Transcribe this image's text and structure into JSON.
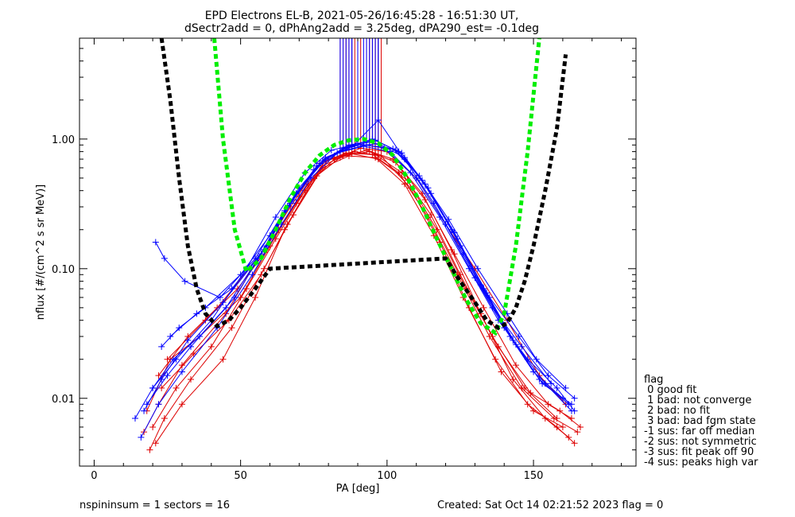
{
  "chart_data": {
    "type": "line",
    "title": "EPD Electrons EL-B, 2021-05-26/16:45:28 - 16:51:30 UT,",
    "subtitle": "dSectr2add = 0, dPhAng2add = 3.25deg, dPA290_est=  -0.1deg",
    "xlabel": "PA [deg]",
    "ylabel": "nflux [#/(cm^2 s sr MeV)]",
    "xlim": [
      -5,
      185
    ],
    "ylim": [
      0.003,
      6.0
    ],
    "yscale": "log",
    "xticks": [
      "0",
      "50",
      "100",
      "150"
    ],
    "xtick_values": [
      0,
      50,
      100,
      150
    ],
    "yticks": [
      "0.01",
      "0.10",
      "1.00"
    ],
    "ytick_values": [
      0.01,
      0.1,
      1.0
    ],
    "grid": false,
    "colors": {
      "series_red": "#dd0000",
      "series_blue": "#0000ff",
      "fit_green": "#00ee00",
      "fit_black": "#000000"
    },
    "series": [
      {
        "color": "red",
        "marker": "+",
        "x": [
          17,
          22,
          30,
          45,
          56,
          67,
          77,
          86,
          95,
          104,
          114,
          124,
          135,
          146,
          157,
          165
        ],
        "y": [
          0.0055,
          0.009,
          0.018,
          0.045,
          0.12,
          0.3,
          0.65,
          0.78,
          0.76,
          0.55,
          0.25,
          0.09,
          0.03,
          0.012,
          0.007,
          0.0055
        ]
      },
      {
        "color": "red",
        "marker": "+",
        "x": [
          19,
          24,
          33,
          47,
          58,
          68,
          78,
          87,
          96,
          106,
          116,
          126,
          137,
          148,
          158,
          164
        ],
        "y": [
          0.004,
          0.007,
          0.014,
          0.035,
          0.1,
          0.26,
          0.6,
          0.74,
          0.72,
          0.45,
          0.18,
          0.06,
          0.02,
          0.009,
          0.006,
          0.0045
        ]
      },
      {
        "color": "red",
        "marker": "+",
        "x": [
          20,
          28,
          40,
          52,
          62,
          72,
          80,
          89,
          98,
          108,
          118,
          128,
          139,
          150,
          160
        ],
        "y": [
          0.006,
          0.012,
          0.025,
          0.07,
          0.17,
          0.4,
          0.7,
          0.8,
          0.74,
          0.42,
          0.16,
          0.05,
          0.016,
          0.008,
          0.006
        ]
      },
      {
        "color": "red",
        "marker": "+",
        "x": [
          18,
          26,
          36,
          50,
          60,
          70,
          79,
          88,
          97,
          107,
          117,
          127,
          138,
          149,
          159,
          166
        ],
        "y": [
          0.008,
          0.02,
          0.03,
          0.06,
          0.15,
          0.36,
          0.68,
          0.77,
          0.7,
          0.48,
          0.2,
          0.07,
          0.025,
          0.011,
          0.008,
          0.006
        ]
      },
      {
        "color": "red",
        "marker": "+",
        "x": [
          21,
          30,
          44,
          55,
          65,
          75,
          84,
          93,
          102,
          112,
          122,
          132,
          143,
          154,
          162
        ],
        "y": [
          0.0045,
          0.009,
          0.02,
          0.06,
          0.2,
          0.5,
          0.72,
          0.82,
          0.7,
          0.38,
          0.14,
          0.045,
          0.014,
          0.007,
          0.005
        ]
      },
      {
        "color": "red",
        "marker": "+",
        "x": [
          23,
          34,
          46,
          57,
          66,
          76,
          85,
          94,
          103,
          113,
          123,
          133,
          144,
          155,
          163
        ],
        "y": [
          0.012,
          0.022,
          0.04,
          0.09,
          0.22,
          0.52,
          0.75,
          0.8,
          0.66,
          0.34,
          0.13,
          0.05,
          0.018,
          0.009,
          0.007
        ]
      },
      {
        "color": "red",
        "marker": "+",
        "x": [
          22,
          32,
          42,
          53,
          63,
          73,
          82,
          91,
          100,
          110,
          120,
          130,
          141,
          152,
          161
        ],
        "y": [
          0.015,
          0.03,
          0.05,
          0.1,
          0.2,
          0.45,
          0.7,
          0.85,
          0.8,
          0.5,
          0.22,
          0.1,
          0.04,
          0.015,
          0.009
        ]
      },
      {
        "color": "red",
        "marker": "+",
        "x": [
          25,
          38,
          49,
          59,
          69,
          78,
          87,
          96,
          105,
          115,
          125,
          136,
          147,
          158
        ],
        "y": [
          0.02,
          0.04,
          0.07,
          0.14,
          0.32,
          0.62,
          0.78,
          0.76,
          0.55,
          0.26,
          0.09,
          0.03,
          0.012,
          0.007
        ]
      },
      {
        "color": "blue",
        "marker": "+",
        "x": [
          14,
          20,
          28,
          40,
          52,
          62,
          72,
          81,
          90,
          99,
          108,
          118,
          128,
          138,
          148,
          158,
          164
        ],
        "y": [
          0.007,
          0.012,
          0.02,
          0.04,
          0.1,
          0.25,
          0.55,
          0.82,
          0.92,
          0.85,
          0.55,
          0.25,
          0.1,
          0.04,
          0.02,
          0.012,
          0.008
        ]
      },
      {
        "color": "blue",
        "marker": "+",
        "x": [
          16,
          22,
          30,
          42,
          54,
          64,
          74,
          83,
          92,
          101,
          110,
          120,
          130,
          140,
          150,
          160
        ],
        "y": [
          0.005,
          0.009,
          0.016,
          0.035,
          0.09,
          0.22,
          0.5,
          0.78,
          0.88,
          0.8,
          0.5,
          0.22,
          0.085,
          0.035,
          0.016,
          0.01
        ]
      },
      {
        "color": "blue",
        "marker": "+",
        "x": [
          18,
          25,
          33,
          45,
          56,
          66,
          76,
          85,
          94,
          103,
          112,
          122,
          132,
          142,
          152,
          162
        ],
        "y": [
          0.009,
          0.015,
          0.025,
          0.05,
          0.12,
          0.3,
          0.62,
          0.85,
          0.95,
          0.82,
          0.48,
          0.2,
          0.075,
          0.03,
          0.014,
          0.009
        ]
      },
      {
        "color": "blue",
        "marker": "+",
        "x": [
          20,
          27,
          36,
          48,
          58,
          68,
          78,
          87,
          96,
          105,
          114,
          124,
          134,
          144,
          154,
          163
        ],
        "y": [
          0.012,
          0.02,
          0.03,
          0.06,
          0.14,
          0.34,
          0.68,
          0.9,
          0.98,
          0.78,
          0.42,
          0.17,
          0.065,
          0.026,
          0.013,
          0.008
        ]
      },
      {
        "color": "blue",
        "marker": "+",
        "x": [
          21,
          24,
          31,
          43,
          55,
          65,
          75,
          84,
          93,
          102,
          111,
          121,
          131,
          141,
          151,
          161
        ],
        "y": [
          0.16,
          0.12,
          0.08,
          0.06,
          0.12,
          0.28,
          0.58,
          0.8,
          0.9,
          0.84,
          0.52,
          0.24,
          0.1,
          0.045,
          0.02,
          0.012
        ]
      },
      {
        "color": "blue",
        "marker": "+",
        "x": [
          23,
          29,
          38,
          50,
          60,
          70,
          79,
          88,
          97,
          106,
          115,
          125,
          135,
          145,
          155,
          164
        ],
        "y": [
          0.025,
          0.035,
          0.05,
          0.09,
          0.18,
          0.42,
          0.72,
          0.88,
          0.92,
          0.72,
          0.38,
          0.15,
          0.06,
          0.03,
          0.015,
          0.01
        ]
      },
      {
        "color": "blue",
        "marker": "+",
        "x": [
          17,
          23,
          32,
          44,
          57,
          67,
          77,
          86,
          95,
          104,
          113,
          123,
          133,
          143,
          153,
          163
        ],
        "y": [
          0.008,
          0.014,
          0.028,
          0.055,
          0.13,
          0.32,
          0.65,
          0.86,
          1.0,
          0.8,
          0.45,
          0.19,
          0.07,
          0.028,
          0.013,
          0.009
        ]
      },
      {
        "color": "blue",
        "marker": "+",
        "x": [
          26,
          35,
          47,
          59,
          69,
          79,
          88,
          97,
          106,
          116,
          126,
          136,
          146,
          156
        ],
        "y": [
          0.03,
          0.045,
          0.07,
          0.15,
          0.38,
          0.7,
          0.87,
          1.4,
          0.7,
          0.32,
          0.13,
          0.05,
          0.025,
          0.013
        ]
      },
      {
        "color": "green",
        "style": "dashed",
        "x": [
          41,
          44,
          48,
          52,
          57,
          62,
          67,
          72,
          77,
          82,
          87,
          92,
          97,
          102,
          107,
          112,
          117,
          122,
          127,
          132,
          137,
          140,
          144,
          148,
          152
        ],
        "y": [
          6.0,
          1.0,
          0.2,
          0.095,
          0.12,
          0.2,
          0.35,
          0.55,
          0.75,
          0.9,
          0.98,
          1.0,
          0.93,
          0.75,
          0.5,
          0.3,
          0.17,
          0.1,
          0.058,
          0.038,
          0.032,
          0.045,
          0.15,
          0.8,
          6.0
        ]
      },
      {
        "color": "black",
        "style": "dashed",
        "x": [
          23,
          26,
          29,
          32,
          35,
          38,
          42,
          46,
          50,
          55,
          60,
          120,
          125,
          130,
          134,
          138,
          141,
          144,
          147,
          150,
          154,
          158,
          161
        ],
        "y": [
          6.0,
          2.0,
          0.5,
          0.15,
          0.07,
          0.045,
          0.036,
          0.04,
          0.05,
          0.07,
          0.1,
          0.12,
          0.08,
          0.055,
          0.04,
          0.035,
          0.038,
          0.05,
          0.08,
          0.15,
          0.4,
          1.2,
          4.5
        ]
      }
    ],
    "legend_title": "flag",
    "legend": [
      " 0 good fit",
      " 1 bad: not converge",
      " 2 bad: no fit",
      " 3 bad: bad fgm state",
      "-1 sus: far off median",
      "-2 sus: not symmetric",
      "-3 sus: fit peak off 90",
      "-4 sus: peaks high var"
    ],
    "legend_position": "right-bottom"
  },
  "footer": {
    "left": "nspininsum =  1  sectors = 16",
    "right": "Created: Sat Oct 14 02:21:52 2023   flag = 0"
  }
}
